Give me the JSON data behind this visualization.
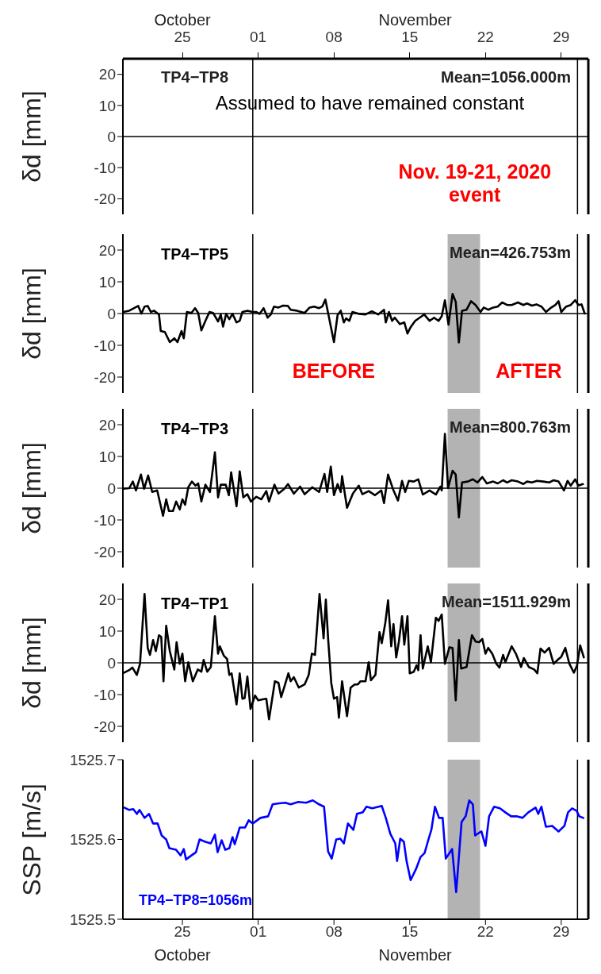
{
  "chart_data": [
    {
      "type": "line",
      "ylabel": "δd [mm]",
      "xlim": [
        "2020-10-20",
        "2020-12-02"
      ],
      "x2lim": [
        "2020-10-20",
        "2020-12-02"
      ],
      "x2ticks": [
        {
          "value": "2020-10-25T12:00",
          "label": "25"
        },
        {
          "value": "2020-11-01T12:00",
          "label": "01"
        },
        {
          "value": "2020-11-08T12:00",
          "label": "08"
        },
        {
          "value": "2020-11-15T12:00",
          "label": "15"
        },
        {
          "value": "2020-11-22T12:00",
          "label": "22"
        },
        {
          "value": "2020-11-29T12:00",
          "label": "29"
        }
      ],
      "ylim": [
        -25,
        25
      ],
      "yticks": [
        -20,
        -10,
        0,
        10,
        20
      ],
      "tick_labels": "y",
      "ref_lines": [
        {
          "axis": "x",
          "value": "2020-11-01",
          "label": null,
          "color": "#000000"
        },
        {
          "axis": "x",
          "value": "2020-12-01",
          "label": null,
          "color": "#000000"
        },
        {
          "axis": "y",
          "value": 0,
          "label": null,
          "color": "#000000"
        }
      ],
      "annotations": [
        "TP4−TP8",
        "Mean=1056.000m",
        "Assumed to have remained constant",
        "Nov. 19-21, 2020\nevent",
        "October",
        "November"
      ]
    },
    {
      "type": "line",
      "ylabel": "δd [mm]",
      "xlim": [
        "2020-10-20",
        "2020-12-02"
      ],
      "ylim": [
        -25,
        25
      ],
      "yticks": [
        -20,
        -10,
        0,
        10,
        20
      ],
      "tick_labels": "y",
      "series": [
        {
          "name": "TP4−TP5",
          "color": "#000000",
          "x": [
            "2020-10-20T00:00",
            "2020-10-20T14:00",
            "2020-10-21T10:00",
            "2020-10-21T17:00",
            "2020-10-22T00:00",
            "2020-10-22T07:00",
            "2020-10-22T14:00",
            "2020-10-22T21:00",
            "2020-10-23T08:00",
            "2020-10-23T12:00",
            "2020-10-23T21:00",
            "2020-10-24T08:00",
            "2020-10-24T18:00",
            "2020-10-25T01:00",
            "2020-10-25T10:00",
            "2020-10-25T15:00",
            "2020-10-25T22:00",
            "2020-10-26T08:00",
            "2020-10-26T16:00",
            "2020-10-26T23:00",
            "2020-10-27T06:00",
            "2020-10-27T15:00",
            "2020-10-28T00:00",
            "2020-10-28T08:00",
            "2020-10-28T19:00",
            "2020-10-29T01:00",
            "2020-10-29T06:00",
            "2020-10-29T13:00",
            "2020-10-29T20:00",
            "2020-10-30T03:00",
            "2020-10-30T12:00",
            "2020-10-30T19:00",
            "2020-10-31T01:00",
            "2020-10-31T12:00",
            "2020-11-01T00:00",
            "2020-11-01T08:00",
            "2020-11-01T15:00",
            "2020-11-02T00:00",
            "2020-11-02T09:00",
            "2020-11-02T16:00",
            "2020-11-02T23:00",
            "2020-11-03T09:00",
            "2020-11-03T19:00",
            "2020-11-04T06:00",
            "2020-11-04T12:00",
            "2020-11-05T02:00",
            "2020-11-05T19:00",
            "2020-11-06T06:00",
            "2020-11-06T16:00",
            "2020-11-07T03:00",
            "2020-11-07T10:00",
            "2020-11-07T17:00",
            "2020-11-07T23:00",
            "2020-11-08T12:00",
            "2020-11-08T20:00",
            "2020-11-09T03:00",
            "2020-11-09T10:00",
            "2020-11-09T15:00",
            "2020-11-09T22:00",
            "2020-11-10T05:00",
            "2020-11-10T20:00",
            "2020-11-11T10:00",
            "2020-11-12T00:00",
            "2020-11-12T14:00",
            "2020-11-13T03:00",
            "2020-11-13T07:00",
            "2020-11-13T14:00",
            "2020-11-13T21:00",
            "2020-11-14T03:00",
            "2020-11-14T14:00",
            "2020-11-15T00:00",
            "2020-11-15T07:00",
            "2020-11-15T14:00",
            "2020-11-16T00:00",
            "2020-11-16T10:00",
            "2020-11-16T20:00",
            "2020-11-17T08:00",
            "2020-11-17T18:00",
            "2020-11-18T04:00",
            "2020-11-18T11:00",
            "2020-11-18T18:00",
            "2020-11-19T02:00",
            "2020-11-19T11:00",
            "2020-11-19T18:00",
            "2020-11-20T01:00",
            "2020-11-20T08:00",
            "2020-11-20T18:00",
            "2020-11-21T04:00",
            "2020-11-21T14:00",
            "2020-11-22T01:00",
            "2020-11-22T08:00",
            "2020-11-22T18:00",
            "2020-11-23T05:00",
            "2020-11-23T15:00",
            "2020-11-24T01:00",
            "2020-11-24T12:00",
            "2020-11-24T22:00",
            "2020-11-25T12:00",
            "2020-11-26T00:00",
            "2020-11-26T08:00",
            "2020-11-26T19:00",
            "2020-11-27T05:00",
            "2020-11-27T16:00",
            "2020-11-28T02:00",
            "2020-11-28T12:00",
            "2020-11-28T23:00",
            "2020-11-29T06:00",
            "2020-11-29T12:00",
            "2020-11-29T23:00",
            "2020-11-30T09:00",
            "2020-11-30T19:00",
            "2020-12-01T02:00",
            "2020-12-01T09:00",
            "2020-12-01T16:00"
          ],
          "values": [
            0.5,
            0.9,
            2.4,
            0,
            2.2,
            2.4,
            0.5,
            0.9,
            -0.3,
            -5.5,
            -5.8,
            -9,
            -7.8,
            -9,
            -5.5,
            -7.8,
            0.5,
            0.2,
            1.7,
            0.2,
            -5.3,
            -2.3,
            0.5,
            0.2,
            -2.5,
            -0.3,
            -4.1,
            -0.1,
            -1.8,
            -0.1,
            -2.8,
            -2.3,
            0.5,
            0.9,
            0.5,
            0.5,
            -0.1,
            1.7,
            -1.3,
            -0.3,
            2.2,
            1.9,
            2.5,
            2.4,
            1.2,
            0.9,
            0.2,
            1.9,
            2.2,
            1.7,
            2.2,
            4.4,
            0.2,
            -9,
            -0.5,
            0.9,
            -2.8,
            -1.5,
            -2.3,
            0.5,
            -0.1,
            -0.3,
            0.7,
            -0.3,
            1.2,
            -2.8,
            0.5,
            -2.3,
            -1.3,
            -3.3,
            -2.8,
            -6.3,
            -4.3,
            -2.3,
            -1.3,
            -0.3,
            -2.3,
            -1.3,
            -2.3,
            -0.8,
            4.2,
            -3.5,
            6.2,
            3.7,
            -9.1,
            0.9,
            1.2,
            3.9,
            2.7,
            0.5,
            1.9,
            1.2,
            1.9,
            2.2,
            3.5,
            2.7,
            2.7,
            3.5,
            2.7,
            3.2,
            2.5,
            2.9,
            2.2,
            0.5,
            1.7,
            2.7,
            3.9,
            0.5,
            2.2,
            2.7,
            4.2,
            2.7,
            2.9,
            0
          ]
        }
      ],
      "ref_lines": [
        {
          "axis": "x",
          "value": "2020-11-01",
          "label": null,
          "color": "#000000"
        },
        {
          "axis": "x",
          "value": "2020-12-01",
          "label": null,
          "color": "#000000"
        },
        {
          "axis": "y",
          "value": 0,
          "label": null,
          "color": "#000000"
        }
      ],
      "bands": [
        {
          "axis": "x",
          "from": "2020-11-19",
          "to": "2020-11-22",
          "label": null,
          "color": "#b3b3b3"
        }
      ],
      "annotations": [
        "Mean=426.753m",
        "BEFORE",
        "AFTER"
      ]
    },
    {
      "type": "line",
      "ylabel": "δd [mm]",
      "xlim": [
        "2020-10-20",
        "2020-12-02"
      ],
      "ylim": [
        -25,
        25
      ],
      "yticks": [
        -20,
        -10,
        0,
        10,
        20
      ],
      "tick_labels": "y",
      "series": [
        {
          "name": "TP4−TP3",
          "color": "#000000",
          "x": [
            "2020-10-20T00:00",
            "2020-10-20T14:00",
            "2020-10-20T22:00",
            "2020-10-21T05:00",
            "2020-10-21T16:00",
            "2020-10-21T23:00",
            "2020-10-22T08:00",
            "2020-10-22T17:00",
            "2020-10-23T04:00",
            "2020-10-23T17:00",
            "2020-10-24T00:00",
            "2020-10-24T06:00",
            "2020-10-24T15:00",
            "2020-10-24T22:00",
            "2020-10-25T06:00",
            "2020-10-25T12:00",
            "2020-10-25T18:00",
            "2020-10-26T01:00",
            "2020-10-26T09:00",
            "2020-10-26T17:00",
            "2020-10-26T23:00",
            "2020-10-27T06:00",
            "2020-10-27T15:00",
            "2020-10-28T01:00",
            "2020-10-28T12:00",
            "2020-10-28T19:00",
            "2020-10-29T01:00",
            "2020-10-29T12:00",
            "2020-10-29T19:00",
            "2020-10-30T00:00",
            "2020-10-30T12:00",
            "2020-10-30T19:00",
            "2020-10-31T03:00",
            "2020-10-31T12:00",
            "2020-10-31T20:00",
            "2020-11-01T08:00",
            "2020-11-01T19:00",
            "2020-11-02T06:00",
            "2020-11-02T12:00",
            "2020-11-03T00:00",
            "2020-11-03T09:00",
            "2020-11-03T22:00",
            "2020-11-04T06:00",
            "2020-11-04T19:00",
            "2020-11-05T09:00",
            "2020-11-05T19:00",
            "2020-11-06T12:00",
            "2020-11-07T03:00",
            "2020-11-07T15:00",
            "2020-11-07T21:00",
            "2020-11-08T05:00",
            "2020-11-08T12:00",
            "2020-11-08T20:00",
            "2020-11-09T03:00",
            "2020-11-09T06:00",
            "2020-11-09T17:00",
            "2020-11-10T06:00",
            "2020-11-10T19:00",
            "2020-11-11T03:00",
            "2020-11-11T17:00",
            "2020-11-12T07:00",
            "2020-11-12T21:00",
            "2020-11-13T03:00",
            "2020-11-13T12:00",
            "2020-11-14T00:00",
            "2020-11-14T10:00",
            "2020-11-14T19:00",
            "2020-11-15T02:00",
            "2020-11-15T10:00",
            "2020-11-15T21:00",
            "2020-11-16T07:00",
            "2020-11-16T17:00",
            "2020-11-17T08:00",
            "2020-11-17T22:00",
            "2020-11-18T08:00",
            "2020-11-18T11:00",
            "2020-11-18T18:00",
            "2020-11-19T01:00",
            "2020-11-19T11:00",
            "2020-11-19T18:00",
            "2020-11-20T01:00",
            "2020-11-20T08:00",
            "2020-11-20T21:00",
            "2020-11-21T08:00",
            "2020-11-21T18:00",
            "2020-11-22T05:00",
            "2020-11-22T15:00",
            "2020-11-23T05:00",
            "2020-11-23T15:00",
            "2020-11-24T03:00",
            "2020-11-24T12:00",
            "2020-11-24T22:00",
            "2020-11-25T12:00",
            "2020-11-26T00:00",
            "2020-11-26T08:00",
            "2020-11-26T19:00",
            "2020-11-27T06:00",
            "2020-11-27T20:00",
            "2020-11-28T09:00",
            "2020-11-28T19:00",
            "2020-11-29T06:00",
            "2020-11-29T18:00",
            "2020-11-30T02:00",
            "2020-11-30T09:00",
            "2020-11-30T19:00",
            "2020-12-01T02:00",
            "2020-12-01T12:00"
          ],
          "values": [
            -0.2,
            0,
            2.1,
            -0.7,
            4.3,
            -0.2,
            4.0,
            -1.2,
            -0.7,
            -8.7,
            -3.5,
            -7.2,
            -7.2,
            -4.2,
            -6.7,
            -3.5,
            -5.2,
            0.3,
            2.1,
            0.8,
            1.5,
            -4.2,
            1.1,
            -1.2,
            11.3,
            -2.9,
            1.1,
            1.1,
            -2.2,
            5.0,
            -5.7,
            5.3,
            -2.9,
            -1.9,
            -4.2,
            -2.7,
            -3.5,
            -0.9,
            -4.2,
            1.1,
            -1.7,
            -0.2,
            1.3,
            -1.7,
            0.5,
            -1.9,
            0.3,
            -1.2,
            4.5,
            -1.2,
            6.8,
            -2.2,
            1.3,
            -1.2,
            3.8,
            -6.2,
            -1.7,
            0.8,
            -1.9,
            -0.9,
            -2.2,
            -0.7,
            -4.7,
            4.3,
            -0.7,
            -3.9,
            2.3,
            -1.2,
            2.3,
            2.1,
            2.8,
            -2.0,
            -0.7,
            -2.0,
            0.5,
            -0.7,
            17.1,
            0.1,
            5.5,
            4.3,
            -9.2,
            1.8,
            2.1,
            2.8,
            1.8,
            3.5,
            1.5,
            2.1,
            1.5,
            2.5,
            1.8,
            2.5,
            2.1,
            1.3,
            2.1,
            1.8,
            2.3,
            2.1,
            1.8,
            2.5,
            2.1,
            -0.7,
            2.3,
            0.8,
            2.8,
            0.8,
            1.3
          ]
        }
      ],
      "ref_lines": [
        {
          "axis": "x",
          "value": "2020-11-01",
          "label": null,
          "color": "#000000"
        },
        {
          "axis": "x",
          "value": "2020-12-01",
          "label": null,
          "color": "#000000"
        },
        {
          "axis": "y",
          "value": 0,
          "label": null,
          "color": "#000000"
        }
      ],
      "bands": [
        {
          "axis": "x",
          "from": "2020-11-19",
          "to": "2020-11-22",
          "label": null,
          "color": "#b3b3b3"
        }
      ],
      "annotations": [
        "Mean=800.763m"
      ]
    },
    {
      "type": "line",
      "ylabel": "δd [mm]",
      "xlim": [
        "2020-10-20",
        "2020-12-02"
      ],
      "ylim": [
        -25,
        25
      ],
      "yticks": [
        -20,
        -10,
        0,
        10,
        20
      ],
      "tick_labels": "y",
      "series": [
        {
          "name": "TP4−TP1",
          "color": "#000000",
          "x": [
            "2020-10-20T00:00",
            "2020-10-20T14:00",
            "2020-10-20T21:00",
            "2020-10-21T07:00",
            "2020-10-21T14:00",
            "2020-10-22T00:00",
            "2020-10-22T07:00",
            "2020-10-22T12:00",
            "2020-10-22T19:00",
            "2020-10-23T01:00",
            "2020-10-23T08:00",
            "2020-10-23T13:00",
            "2020-10-23T18:00",
            "2020-10-24T00:00",
            "2020-10-24T08:00",
            "2020-10-24T18:00",
            "2020-10-24T23:00",
            "2020-10-25T06:00",
            "2020-10-25T12:00",
            "2020-10-25T18:00",
            "2020-10-26T01:00",
            "2020-10-26T11:00",
            "2020-10-26T22:00",
            "2020-10-27T06:00",
            "2020-10-27T11:00",
            "2020-10-27T19:00",
            "2020-10-28T03:00",
            "2020-10-28T12:00",
            "2020-10-28T19:00",
            "2020-10-28T23:00",
            "2020-10-29T08:00",
            "2020-10-29T15:00",
            "2020-10-29T20:00",
            "2020-10-30T01:00",
            "2020-10-30T12:00",
            "2020-10-30T19:00",
            "2020-10-31T01:00",
            "2020-10-31T06:00",
            "2020-10-31T12:00",
            "2020-10-31T19:00",
            "2020-11-01T05:00",
            "2020-11-01T12:00",
            "2020-11-01T22:00",
            "2020-11-02T06:00",
            "2020-11-02T12:00",
            "2020-11-03T01:00",
            "2020-11-03T09:00",
            "2020-11-03T15:00",
            "2020-11-03T23:00",
            "2020-11-04T07:00",
            "2020-11-04T12:00",
            "2020-11-04T19:00",
            "2020-11-05T06:00",
            "2020-11-05T19:00",
            "2020-11-06T04:00",
            "2020-11-06T11:00",
            "2020-11-06T18:00",
            "2020-11-07T04:00",
            "2020-11-07T13:00",
            "2020-11-07T18:00",
            "2020-11-07T23:00",
            "2020-11-08T06:00",
            "2020-11-08T12:00",
            "2020-11-08T19:00",
            "2020-11-08T23:00",
            "2020-11-09T06:00",
            "2020-11-09T17:00",
            "2020-11-10T01:00",
            "2020-11-10T10:00",
            "2020-11-10T17:00",
            "2020-11-10T23:00",
            "2020-11-11T10:00",
            "2020-11-11T17:00",
            "2020-11-11T22:00",
            "2020-11-12T08:00",
            "2020-11-12T17:00",
            "2020-11-12T22:00",
            "2020-11-13T06:00",
            "2020-11-13T12:00",
            "2020-11-13T19:00",
            "2020-11-14T00:00",
            "2020-11-14T06:00",
            "2020-11-14T12:00",
            "2020-11-14T19:00",
            "2020-11-15T00:00",
            "2020-11-15T07:00",
            "2020-11-15T12:00",
            "2020-11-15T21:00",
            "2020-11-16T03:00",
            "2020-11-16T07:00",
            "2020-11-16T12:00",
            "2020-11-16T17:00",
            "2020-11-17T04:00",
            "2020-11-17T11:00",
            "2020-11-17T22:00",
            "2020-11-18T04:00",
            "2020-11-18T11:00",
            "2020-11-18T18:00",
            "2020-11-19T04:00",
            "2020-11-19T11:00",
            "2020-11-19T18:00",
            "2020-11-20T01:00",
            "2020-11-20T06:00",
            "2020-11-20T18:00",
            "2020-11-21T06:00",
            "2020-11-21T14:00",
            "2020-11-21T22:00",
            "2020-11-22T05:00",
            "2020-11-22T12:00",
            "2020-11-22T18:00",
            "2020-11-23T03:00",
            "2020-11-23T12:00",
            "2020-11-23T19:00",
            "2020-11-24T03:00",
            "2020-11-24T08:00",
            "2020-11-24T22:00",
            "2020-11-25T08:00",
            "2020-11-25T19:00",
            "2020-11-26T01:00",
            "2020-11-26T12:00",
            "2020-11-27T00:00",
            "2020-11-27T07:00",
            "2020-11-27T14:00",
            "2020-11-27T23:00",
            "2020-11-28T09:00",
            "2020-11-28T19:00",
            "2020-11-29T06:00",
            "2020-11-29T12:00",
            "2020-11-29T21:00",
            "2020-11-30T06:00",
            "2020-11-30T16:00",
            "2020-11-30T23:00",
            "2020-12-01T06:00",
            "2020-12-01T14:00"
          ],
          "values": [
            -3.3,
            -2.3,
            -1.5,
            -3.8,
            -0.3,
            21.7,
            4.7,
            2.5,
            7.2,
            3.7,
            8.7,
            8.2,
            -5.8,
            11.7,
            3.7,
            -2.1,
            6.5,
            -0.3,
            2.9,
            -5.8,
            0.2,
            -5.8,
            -2.1,
            -2.8,
            0.9,
            -2.8,
            -1.3,
            14.7,
            2.9,
            5.2,
            2.2,
            1.2,
            -3.8,
            -3.3,
            -13.1,
            -3.3,
            -11.3,
            -11.1,
            -4.3,
            -14.5,
            -10.3,
            -11.8,
            -11.5,
            -11.3,
            -17.8,
            -5.8,
            -6.3,
            -10.8,
            -7.1,
            -3.3,
            -5.8,
            -4.5,
            -7.8,
            -6.8,
            -3.8,
            2.9,
            2.5,
            21.7,
            7.7,
            19.9,
            7.7,
            -6.3,
            -11.3,
            -10.8,
            -17.3,
            -5.8,
            -16.8,
            -7.8,
            -6.8,
            -6.8,
            -5.8,
            -5.8,
            0.2,
            -5.5,
            -3.8,
            9.7,
            6.2,
            12.7,
            19.7,
            5.2,
            12.2,
            1.7,
            6.7,
            14.7,
            5.7,
            14.7,
            -3.3,
            -2.8,
            -0.8,
            -2.3,
            8.7,
            -1.8,
            5.2,
            0.2,
            14.2,
            13.2,
            15.2,
            -0.3,
            4.9,
            4.7,
            -11.8,
            7.2,
            -1.8,
            -1.3,
            8.7,
            6.7,
            6.5,
            7.5,
            2.9,
            4.7,
            2.9,
            -0.3,
            -1.5,
            2.5,
            0.2,
            5.2,
            2.7,
            -1.3,
            1.5,
            -1.3,
            -2.1,
            -3.3,
            4.5,
            3.2,
            4.7,
            -0.3,
            1.2,
            1.9,
            4.7,
            -0.3,
            -3.1,
            -0.8,
            5.5,
            1.7
          ]
        }
      ],
      "ref_lines": [
        {
          "axis": "x",
          "value": "2020-11-01",
          "label": null,
          "color": "#000000"
        },
        {
          "axis": "x",
          "value": "2020-12-01",
          "label": null,
          "color": "#000000"
        },
        {
          "axis": "y",
          "value": 0,
          "label": null,
          "color": "#000000"
        }
      ],
      "bands": [
        {
          "axis": "x",
          "from": "2020-11-19",
          "to": "2020-11-22",
          "label": null,
          "color": "#b3b3b3"
        }
      ],
      "annotations": [
        "Mean=1511.929m"
      ]
    },
    {
      "type": "line",
      "ylabel": "SSP [m/s]",
      "xlim": [
        "2020-10-20",
        "2020-12-02"
      ],
      "xticks": [
        {
          "value": "2020-10-25T12:00",
          "label": "25"
        },
        {
          "value": "2020-11-01T12:00",
          "label": "01"
        },
        {
          "value": "2020-11-08T12:00",
          "label": "08"
        },
        {
          "value": "2020-11-15T12:00",
          "label": "15"
        },
        {
          "value": "2020-11-22T12:00",
          "label": "22"
        },
        {
          "value": "2020-11-29T12:00",
          "label": "29"
        }
      ],
      "ylim": [
        1525.5,
        1525.7
      ],
      "yticks": [
        1525.5,
        1525.6,
        1525.7
      ],
      "series": [
        {
          "name": "TP4−TP8=1056m",
          "color": "#0000ff",
          "x": [
            "2020-10-20T03:00",
            "2020-10-20T14:00",
            "2020-10-20T23:00",
            "2020-10-21T07:00",
            "2020-10-21T13:00",
            "2020-10-22T00:00",
            "2020-10-22T10:00",
            "2020-10-22T19:00",
            "2020-10-23T05:00",
            "2020-10-23T14:00",
            "2020-10-24T00:00",
            "2020-10-24T07:00",
            "2020-10-24T22:00",
            "2020-10-25T08:00",
            "2020-10-25T15:00",
            "2020-10-25T20:00",
            "2020-10-26T08:00",
            "2020-10-26T18:00",
            "2020-10-27T02:00",
            "2020-10-27T15:00",
            "2020-10-28T03:00",
            "2020-10-28T12:00",
            "2020-10-28T18:00",
            "2020-10-29T03:00",
            "2020-10-29T11:00",
            "2020-10-29T20:00",
            "2020-10-30T03:00",
            "2020-10-30T08:00",
            "2020-10-30T19:00",
            "2020-10-31T07:00",
            "2020-10-31T15:00",
            "2020-11-01T00:00",
            "2020-11-01T17:00",
            "2020-11-02T10:00",
            "2020-11-02T20:00",
            "2020-11-03T07:00",
            "2020-11-04T00:00",
            "2020-11-04T12:00",
            "2020-11-05T05:00",
            "2020-11-05T22:00",
            "2020-11-06T13:00",
            "2020-11-07T03:00",
            "2020-11-07T14:00",
            "2020-11-07T23:00",
            "2020-11-08T07:00",
            "2020-11-08T17:00",
            "2020-11-09T02:00",
            "2020-11-09T10:00",
            "2020-11-09T19:00",
            "2020-11-10T07:00",
            "2020-11-10T15:00",
            "2020-11-11T04:00",
            "2020-11-11T12:00",
            "2020-11-12T01:00",
            "2020-11-12T22:00",
            "2020-11-13T07:00",
            "2020-11-13T17:00",
            "2020-11-14T04:00",
            "2020-11-14T08:00",
            "2020-11-14T15:00",
            "2020-11-14T23:00",
            "2020-11-15T05:00",
            "2020-11-15T14:00",
            "2020-11-16T02:00",
            "2020-11-16T12:00",
            "2020-11-16T21:00",
            "2020-11-17T05:00",
            "2020-11-17T12:00",
            "2020-11-17T20:00",
            "2020-11-18T05:00",
            "2020-11-18T13:00",
            "2020-11-18T20:00",
            "2020-11-19T10:00",
            "2020-11-19T19:00",
            "2020-11-20T07:00",
            "2020-11-20T16:00",
            "2020-11-21T00:00",
            "2020-11-21T08:00",
            "2020-11-21T13:00",
            "2020-11-21T21:00",
            "2020-11-22T03:00",
            "2020-11-22T12:00",
            "2020-11-22T20:00",
            "2020-11-23T07:00",
            "2020-11-23T20:00",
            "2020-11-24T08:00",
            "2020-11-24T21:00",
            "2020-11-25T09:00",
            "2020-11-25T22:00",
            "2020-11-26T11:00",
            "2020-11-26T19:00",
            "2020-11-27T03:00",
            "2020-11-27T09:00",
            "2020-11-27T16:00",
            "2020-11-28T02:00",
            "2020-11-28T16:00",
            "2020-11-29T06:00",
            "2020-11-29T19:00",
            "2020-11-30T03:00",
            "2020-11-30T12:00",
            "2020-11-30T22:00",
            "2020-12-01T04:00",
            "2020-12-01T13:00"
          ],
          "values": [
            1525.64,
            1525.637,
            1525.638,
            1525.632,
            1525.637,
            1525.627,
            1525.632,
            1525.62,
            1525.62,
            1525.605,
            1525.6,
            1525.589,
            1525.587,
            1525.58,
            1525.588,
            1525.575,
            1525.58,
            1525.584,
            1525.6,
            1525.597,
            1525.595,
            1525.606,
            1525.584,
            1525.599,
            1525.587,
            1525.589,
            1525.603,
            1525.594,
            1525.615,
            1525.615,
            1525.624,
            1525.62,
            1525.627,
            1525.629,
            1525.644,
            1525.645,
            1525.646,
            1525.644,
            1525.647,
            1525.646,
            1525.649,
            1525.644,
            1525.641,
            1525.585,
            1525.576,
            1525.6,
            1525.601,
            1525.595,
            1525.62,
            1525.612,
            1525.632,
            1525.634,
            1525.641,
            1525.639,
            1525.642,
            1525.627,
            1525.607,
            1525.595,
            1525.573,
            1525.601,
            1525.597,
            1525.573,
            1525.549,
            1525.563,
            1525.578,
            1525.583,
            1525.599,
            1525.612,
            1525.641,
            1525.627,
            1525.627,
            1525.576,
            1525.588,
            1525.534,
            1525.622,
            1525.629,
            1525.649,
            1525.644,
            1525.605,
            1525.608,
            1525.61,
            1525.592,
            1525.629,
            1525.641,
            1525.639,
            1525.634,
            1525.629,
            1525.629,
            1525.627,
            1525.634,
            1525.637,
            1525.64,
            1525.632,
            1525.641,
            1525.616,
            1525.617,
            1525.61,
            1525.617,
            1525.634,
            1525.639,
            1525.636,
            1525.629,
            1525.627
          ]
        }
      ],
      "ref_lines": [
        {
          "axis": "x",
          "value": "2020-11-01",
          "label": null,
          "color": "#000000"
        },
        {
          "axis": "x",
          "value": "2020-12-01",
          "label": null,
          "color": "#000000"
        }
      ],
      "bands": [
        {
          "axis": "x",
          "from": "2020-11-19",
          "to": "2020-11-22",
          "label": null,
          "color": "#b3b3b3"
        }
      ],
      "annotations": [
        "October",
        "November"
      ]
    }
  ]
}
